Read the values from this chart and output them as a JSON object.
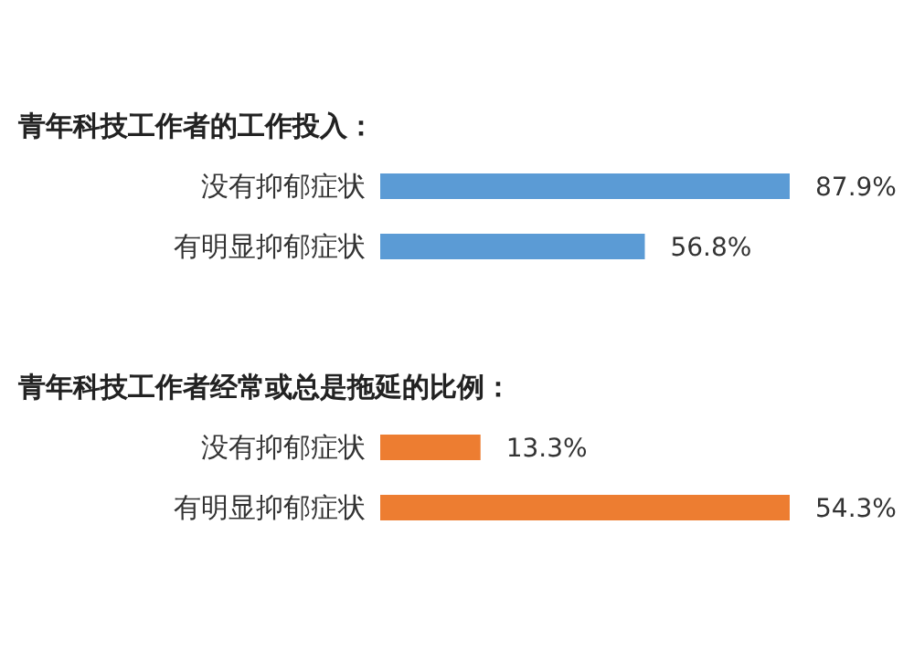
{
  "chart_data": [
    {
      "type": "bar",
      "orientation": "horizontal",
      "title": "青年科技工作者的工作投入：",
      "categories": [
        "没有抑郁症状",
        "有明显抑郁症状"
      ],
      "values": [
        87.9,
        56.8
      ],
      "value_labels": [
        "87.9%",
        "56.8%"
      ],
      "color": "#5b9bd5",
      "grid": false,
      "legend": false
    },
    {
      "type": "bar",
      "orientation": "horizontal",
      "title": "青年科技工作者经常或总是拖延的比例：",
      "categories": [
        "没有抑郁症状",
        "有明显抑郁症状"
      ],
      "values": [
        13.3,
        54.3
      ],
      "value_labels": [
        "13.3%",
        "54.3%"
      ],
      "color": "#ed7d31",
      "grid": false,
      "legend": false
    }
  ]
}
